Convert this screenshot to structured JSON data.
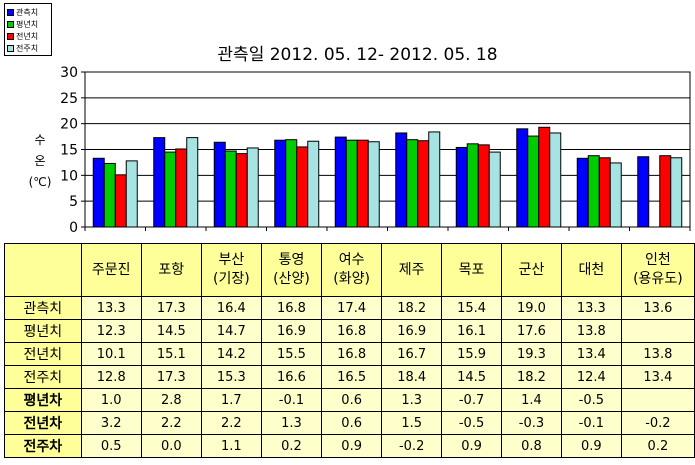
{
  "chart_data": {
    "type": "bar",
    "title": "관측일 2012. 05. 12-  2012. 05. 18",
    "ylabel": [
      "수",
      "온",
      "(℃)"
    ],
    "ylim": [
      0,
      30
    ],
    "yticks": [
      0,
      5,
      10,
      15,
      20,
      25,
      30
    ],
    "grid": true,
    "legend_position": "top-left",
    "categories": [
      "주문진",
      "포항",
      "부산\n(기장)",
      "통영\n(산양)",
      "여수\n(화양)",
      "제주",
      "목포",
      "군산",
      "대천",
      "인천\n(용유도)"
    ],
    "series": [
      {
        "name": "관측치",
        "color": "#0000ff",
        "values": [
          13.3,
          17.3,
          16.4,
          16.8,
          17.4,
          18.2,
          15.4,
          19.0,
          13.3,
          13.6
        ]
      },
      {
        "name": "평년치",
        "color": "#00cc00",
        "values": [
          12.3,
          14.5,
          14.7,
          16.9,
          16.8,
          16.9,
          16.1,
          17.6,
          13.8,
          null
        ]
      },
      {
        "name": "전년치",
        "color": "#ff0000",
        "values": [
          10.1,
          15.1,
          14.2,
          15.5,
          16.8,
          16.7,
          15.9,
          19.3,
          13.4,
          13.8
        ]
      },
      {
        "name": "전주치",
        "color": "#a6e4e4",
        "values": [
          12.8,
          17.3,
          15.3,
          16.6,
          16.5,
          18.4,
          14.5,
          18.2,
          12.4,
          13.4
        ]
      }
    ]
  },
  "table": {
    "headers": [
      "",
      "주문진",
      "포항",
      "부산\n(기장)",
      "통영\n(산양)",
      "여수\n(화양)",
      "제주",
      "목포",
      "군산",
      "대천",
      "인천\n(용유도)"
    ],
    "rows": [
      {
        "label": "관측치",
        "bold": false,
        "cells": [
          "13.3",
          "17.3",
          "16.4",
          "16.8",
          "17.4",
          "18.2",
          "15.4",
          "19.0",
          "13.3",
          "13.6"
        ]
      },
      {
        "label": "평년치",
        "bold": false,
        "cells": [
          "12.3",
          "14.5",
          "14.7",
          "16.9",
          "16.8",
          "16.9",
          "16.1",
          "17.6",
          "13.8",
          ""
        ]
      },
      {
        "label": "전년치",
        "bold": false,
        "cells": [
          "10.1",
          "15.1",
          "14.2",
          "15.5",
          "16.8",
          "16.7",
          "15.9",
          "19.3",
          "13.4",
          "13.8"
        ]
      },
      {
        "label": "전주치",
        "bold": false,
        "cells": [
          "12.8",
          "17.3",
          "15.3",
          "16.6",
          "16.5",
          "18.4",
          "14.5",
          "18.2",
          "12.4",
          "13.4"
        ]
      },
      {
        "label": "평년차",
        "bold": true,
        "cells": [
          "1.0",
          "2.8",
          "1.7",
          "-0.1",
          "0.6",
          "1.3",
          "-0.7",
          "1.4",
          "-0.5",
          ""
        ]
      },
      {
        "label": "전년차",
        "bold": true,
        "cells": [
          "3.2",
          "2.2",
          "2.2",
          "1.3",
          "0.6",
          "1.5",
          "-0.5",
          "-0.3",
          "-0.1",
          "-0.2"
        ]
      },
      {
        "label": "전주차",
        "bold": true,
        "cells": [
          "0.5",
          "0.0",
          "1.1",
          "0.2",
          "0.9",
          "-0.2",
          "0.9",
          "0.8",
          "0.9",
          "0.2"
        ]
      }
    ]
  }
}
